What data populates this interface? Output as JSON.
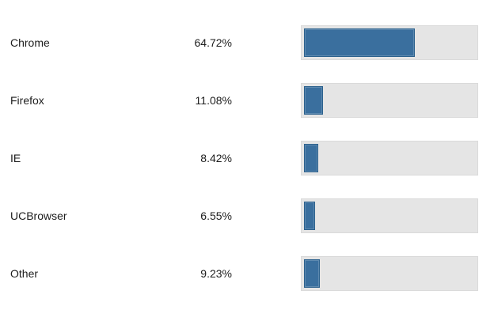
{
  "page": {
    "background": "#ffffff"
  },
  "colors": {
    "bar_fill": "#3a6f9e",
    "bar_border": "#2c618d",
    "track_bg": "#e5e5e5",
    "track_border": "#dadada",
    "text": "#1d1d1d"
  },
  "chart_data": {
    "type": "bar",
    "orientation": "horizontal",
    "title": "",
    "xlabel": "",
    "ylabel": "",
    "categories": [
      "Chrome",
      "Firefox",
      "IE",
      "UCBrowser",
      "Other"
    ],
    "values": [
      64.72,
      11.08,
      8.42,
      6.55,
      9.23
    ],
    "value_labels": [
      "64.72%",
      "11.08%",
      "8.42%",
      "6.55%",
      "9.23%"
    ],
    "xlim": [
      0,
      100
    ],
    "grid": false,
    "legend": false
  },
  "rows": [
    {
      "label": "Chrome",
      "value_label": "64.72%",
      "pct": 64.72
    },
    {
      "label": "Firefox",
      "value_label": "11.08%",
      "pct": 11.08
    },
    {
      "label": "IE",
      "value_label": "8.42%",
      "pct": 8.42
    },
    {
      "label": "UCBrowser",
      "value_label": "6.55%",
      "pct": 6.55
    },
    {
      "label": "Other",
      "value_label": "9.23%",
      "pct": 9.23
    }
  ]
}
